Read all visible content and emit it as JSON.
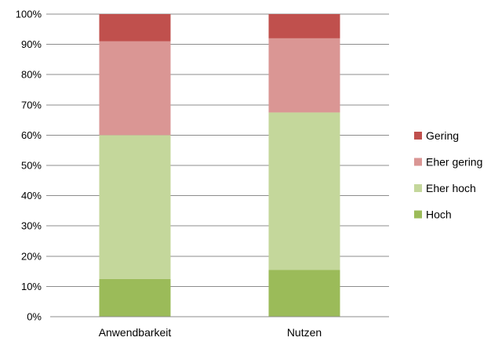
{
  "chart_data": {
    "type": "bar",
    "stacked": true,
    "percent": true,
    "categories": [
      "Anwendbarkeit",
      "Nutzen"
    ],
    "series": [
      {
        "name": "Hoch",
        "color": "#9BBB59",
        "values": [
          12.5,
          15.5
        ]
      },
      {
        "name": "Eher hoch",
        "color": "#C4D79B",
        "values": [
          47.5,
          52.0
        ]
      },
      {
        "name": "Eher gering",
        "color": "#DA9694",
        "values": [
          31.0,
          24.5
        ]
      },
      {
        "name": "Gering",
        "color": "#C0504D",
        "values": [
          9.0,
          8.0
        ]
      }
    ],
    "y_ticks": [
      "0%",
      "10%",
      "20%",
      "30%",
      "40%",
      "50%",
      "60%",
      "70%",
      "80%",
      "90%",
      "100%"
    ],
    "ylim": [
      0,
      100
    ],
    "grid": true,
    "legend_position": "right",
    "legend_order": [
      "Gering",
      "Eher gering",
      "Eher hoch",
      "Hoch"
    ],
    "title": "",
    "xlabel": "",
    "ylabel": ""
  }
}
